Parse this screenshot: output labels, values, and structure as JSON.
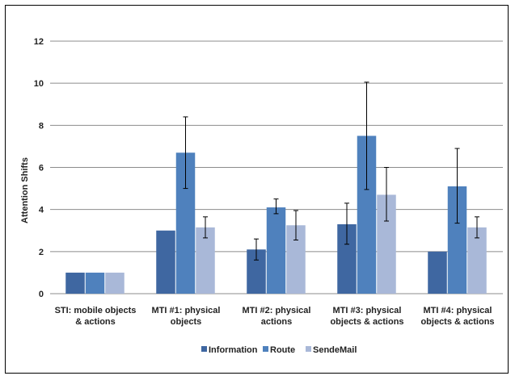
{
  "chart_data": {
    "type": "bar",
    "title": "",
    "xlabel": "",
    "ylabel": "Attention Shifts",
    "ylim": [
      0,
      12
    ],
    "yticks": [
      0,
      2,
      4,
      6,
      8,
      10,
      12
    ],
    "grid": true,
    "legend_position": "bottom",
    "categories": [
      [
        "STI: mobile objects",
        "& actions"
      ],
      [
        "MTI #1: physical",
        "objects"
      ],
      [
        "MTI #2: physical",
        "actions"
      ],
      [
        "MTI #3: physical",
        "objects & actions"
      ],
      [
        "MTI #4: physical",
        "objects & actions"
      ]
    ],
    "series": [
      {
        "name": "Information",
        "color": "#3F67A1",
        "values": [
          1.0,
          3.0,
          2.1,
          3.3,
          2.0
        ],
        "error": [
          null,
          null,
          [
            1.6,
            2.6
          ],
          [
            2.35,
            4.3
          ],
          null
        ]
      },
      {
        "name": "Route",
        "color": "#4F81BD",
        "values": [
          1.0,
          6.7,
          4.1,
          7.5,
          5.1
        ],
        "error": [
          null,
          [
            5.0,
            8.4
          ],
          [
            3.8,
            4.5
          ],
          [
            4.95,
            10.05
          ],
          [
            3.35,
            6.9
          ]
        ]
      },
      {
        "name": "SendeMail",
        "color": "#A9B8D8",
        "values": [
          1.0,
          3.15,
          3.25,
          4.7,
          3.15
        ],
        "error": [
          null,
          [
            2.65,
            3.65
          ],
          [
            2.55,
            3.95
          ],
          [
            3.45,
            6.0
          ],
          [
            2.65,
            3.65
          ]
        ]
      }
    ]
  }
}
